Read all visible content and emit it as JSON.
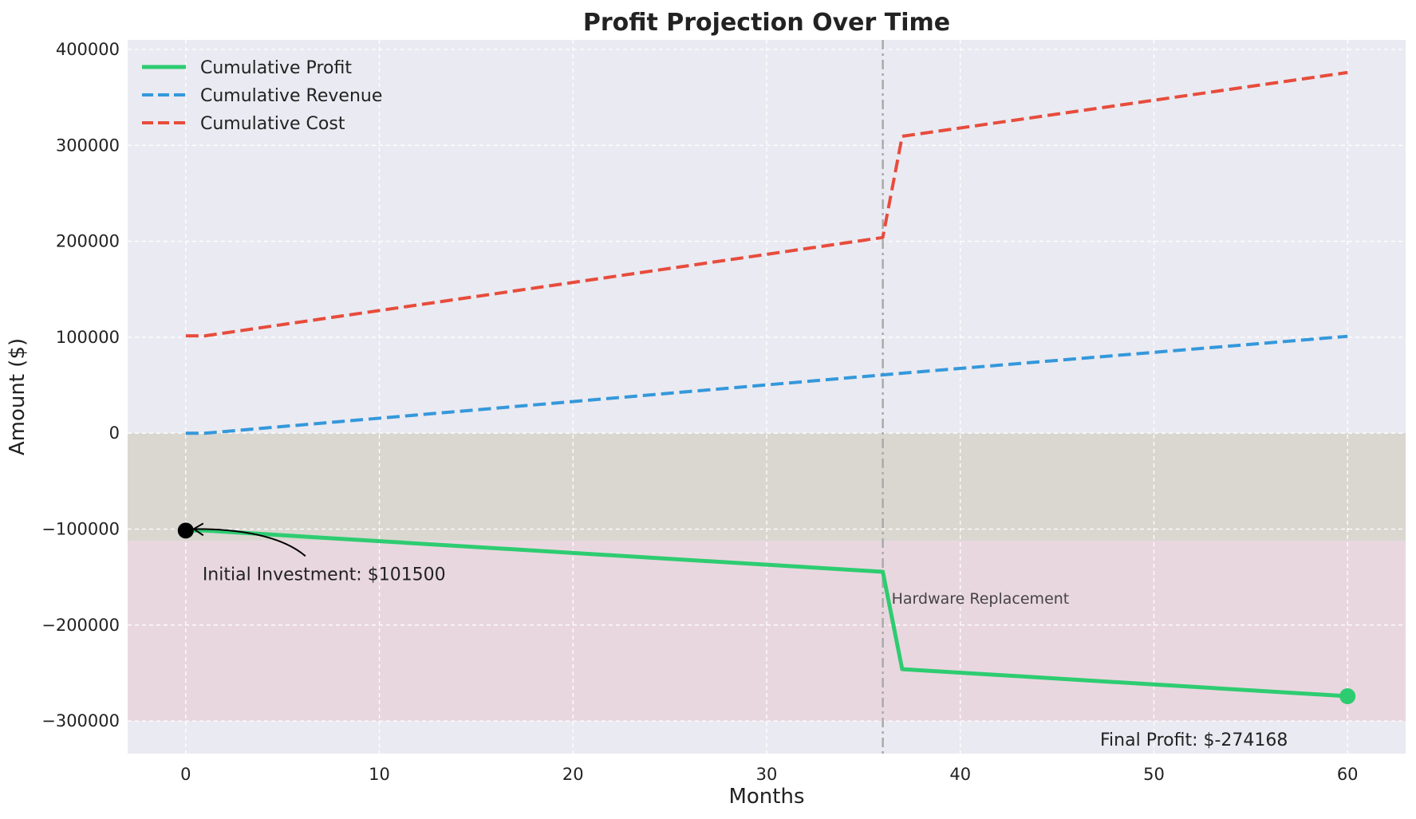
{
  "chart_data": {
    "type": "line",
    "title": "Profit Projection Over Time",
    "xlabel": "Months",
    "ylabel": "Amount ($)",
    "xlim": [
      -3,
      63
    ],
    "ylim": [
      -334000,
      410000
    ],
    "xticks": [
      0,
      10,
      20,
      30,
      40,
      50,
      60
    ],
    "yticks": [
      -300000,
      -200000,
      -100000,
      0,
      100000,
      200000,
      300000,
      400000
    ],
    "grid": true,
    "legend_position": "top-left",
    "series": [
      {
        "name": "Cumulative Profit",
        "style": "solid",
        "color": "#2ecc71",
        "x": [
          0,
          1,
          36,
          37,
          60
        ],
        "y": [
          -101500,
          -101500,
          -144500,
          -246000,
          -274168
        ]
      },
      {
        "name": "Cumulative Revenue",
        "style": "dashed",
        "color": "#3498db",
        "x": [
          0,
          1,
          36,
          37,
          60
        ],
        "y": [
          0,
          0,
          60800,
          62500,
          101000
        ]
      },
      {
        "name": "Cumulative Cost",
        "style": "dashed",
        "color": "#e74c3c",
        "x": [
          0,
          1,
          36,
          37,
          60
        ],
        "y": [
          101500,
          101500,
          204000,
          309500,
          376000
        ]
      }
    ],
    "bands": [
      {
        "y_from": -112000,
        "y_to": 0,
        "color": "#d2cfc2",
        "opacity": 0.7
      },
      {
        "y_from": -300000,
        "y_to": -112000,
        "color": "#e9d3dc",
        "opacity": 0.85
      }
    ],
    "vline": {
      "x": 36,
      "label": "Hardware Replacement"
    },
    "markers": [
      {
        "x": 0,
        "y": -101500,
        "color": "#000000"
      },
      {
        "x": 60,
        "y": -274168,
        "color": "#2ecc71"
      }
    ],
    "annotations": {
      "initial": "Initial Investment: $101500",
      "final": "Final Profit: $-274168"
    }
  }
}
